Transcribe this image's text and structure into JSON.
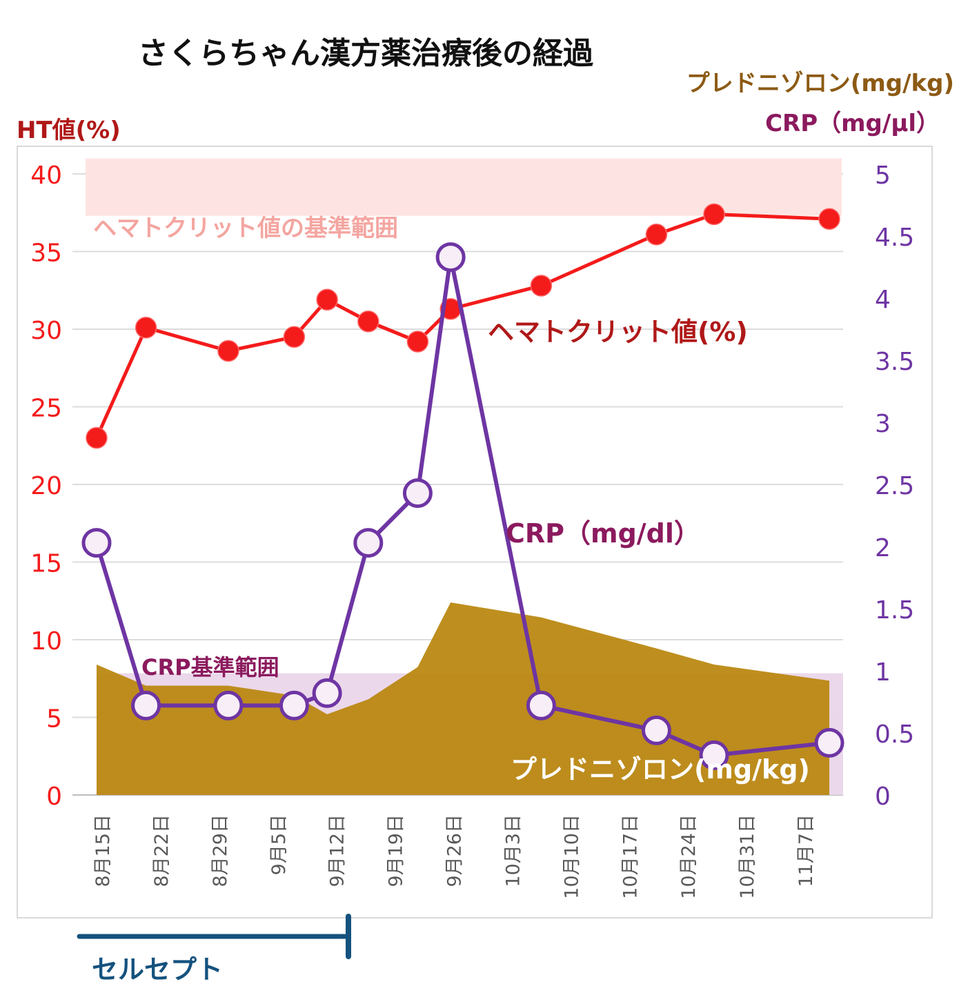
{
  "title": "さくらちゃん漢方薬治療後の経過",
  "right_axis_title_prednisolone": "プレドニゾロン(mg/kg)",
  "right_axis_title_crp": "CRP（mg/μl）",
  "left_axis_title": "HT値(%)",
  "colors": {
    "ht": "#f41b1b",
    "crp": "#6e35a3",
    "crp_label": "#8b1a5e",
    "prednisolone": "#b8860b",
    "ht_band": "#fde3e0",
    "crp_band": "#ead6ea",
    "ht_band_label": "#f4a5a0",
    "annotation_dark_red": "#b01818",
    "brown_title": "#8c5a14",
    "seruseputo": "#14527e"
  },
  "annotations": {
    "ht_range_label": "ヘマトクリット値の基準範囲",
    "ht_series_label": "ヘマトクリット値(%)",
    "crp_series_label": "CRP（mg/dl）",
    "crp_range_label": "CRP基準範囲",
    "prednisolone_label": "プレドニゾロン(mg/kg)"
  },
  "treatment_bar": {
    "label": "セルセプト",
    "from": "8月15日",
    "to": "9月12日"
  },
  "chart_data": {
    "type": "line",
    "x_tick_labels": [
      "8月15日",
      "8月22日",
      "8月29日",
      "9月5日",
      "9月12日",
      "9月19日",
      "9月26日",
      "10月3日",
      "10月10日",
      "10月17日",
      "10月24日",
      "10月31日",
      "11月7日"
    ],
    "x_range_days": [
      0,
      90
    ],
    "left_axis": {
      "min": 0,
      "max": 40,
      "ticks": [
        0,
        5,
        10,
        15,
        20,
        25,
        30,
        35,
        40
      ]
    },
    "right_axis": {
      "min": 0,
      "max": 5,
      "ticks": [
        "0",
        "0.5",
        "1",
        "1.5",
        "2",
        "2.5",
        "3",
        "3.5",
        "4",
        "4.5",
        "5"
      ]
    },
    "reference_ranges": [
      {
        "name": "ヘマトクリット値の基準範囲",
        "axis": "left",
        "from": 37.3,
        "to": 41
      },
      {
        "name": "CRP基準範囲",
        "axis": "right",
        "from": 0,
        "to": 0.98
      }
    ],
    "series": [
      {
        "name": "ヘマトクリット値(%)",
        "axis": "left",
        "style": "line-marker-filled",
        "points": [
          [
            0,
            23
          ],
          [
            6,
            30.1
          ],
          [
            16,
            28.6
          ],
          [
            24,
            29.5
          ],
          [
            28,
            31.9
          ],
          [
            33,
            30.5
          ],
          [
            39,
            29.2
          ],
          [
            43,
            31.3
          ],
          [
            54,
            32.8
          ],
          [
            68,
            36.1
          ],
          [
            75,
            37.4
          ],
          [
            89,
            37.1
          ]
        ]
      },
      {
        "name": "CRP（mg/dl）",
        "axis": "right",
        "style": "line-marker-open",
        "points": [
          [
            0,
            2.03
          ],
          [
            6,
            0.72
          ],
          [
            16,
            0.72
          ],
          [
            24,
            0.72
          ],
          [
            28,
            0.82
          ],
          [
            33,
            2.03
          ],
          [
            39,
            2.43
          ],
          [
            43,
            4.33
          ],
          [
            54,
            0.72
          ],
          [
            68,
            0.52
          ],
          [
            75,
            0.32
          ],
          [
            89,
            0.42
          ]
        ]
      },
      {
        "name": "プレドニゾロン(mg/kg)",
        "axis": "right",
        "style": "area",
        "points": [
          [
            0,
            1.05
          ],
          [
            6,
            0.88
          ],
          [
            16,
            0.88
          ],
          [
            24,
            0.8
          ],
          [
            28,
            0.65
          ],
          [
            33,
            0.77
          ],
          [
            39,
            1.03
          ],
          [
            43,
            1.55
          ],
          [
            54,
            1.43
          ],
          [
            68,
            1.18
          ],
          [
            75,
            1.05
          ],
          [
            89,
            0.92
          ]
        ]
      }
    ]
  }
}
